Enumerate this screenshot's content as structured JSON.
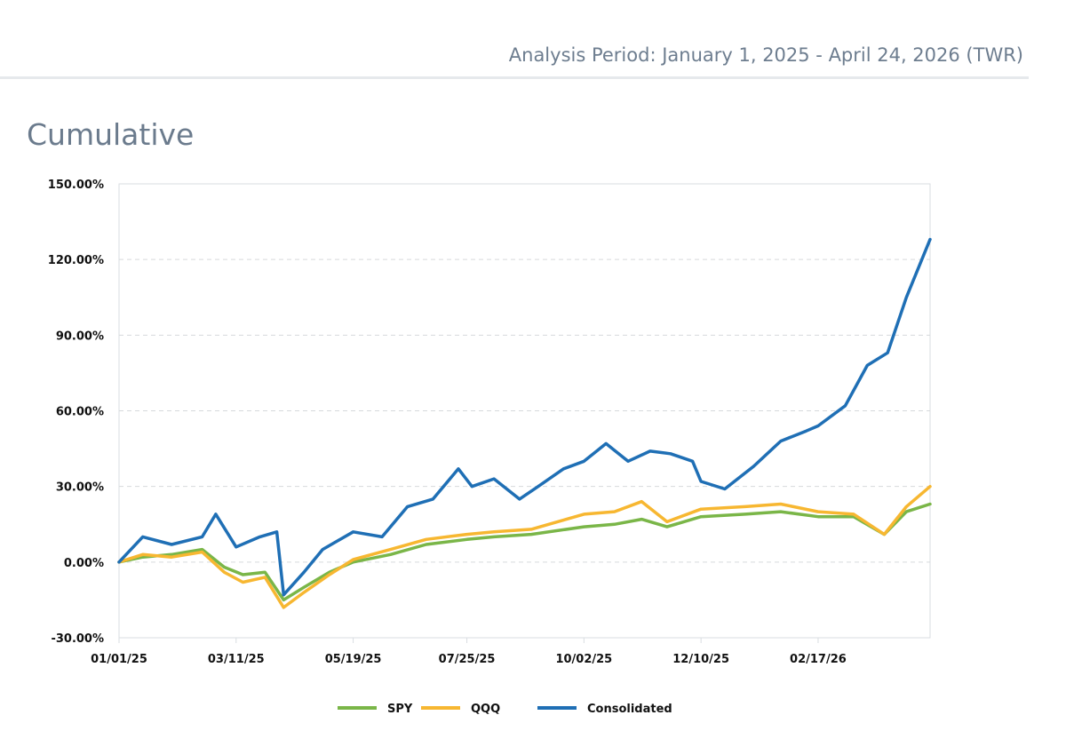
{
  "header": {
    "analysis_period": "Analysis Period: January 1, 2025 - April 24, 2026 (TWR)"
  },
  "section": {
    "title": "Cumulative"
  },
  "chart_data": {
    "type": "line",
    "ylim": [
      -30,
      150
    ],
    "ylabel": "",
    "xlabel": "",
    "y_ticks": [
      "150.00%",
      "120.00%",
      "90.00%",
      "60.00%",
      "30.00%",
      "0.00%",
      "-30.00%"
    ],
    "y_tick_values": [
      150,
      120,
      90,
      60,
      30,
      0,
      -30
    ],
    "x_tick_labels": [
      "01/01/25",
      "03/11/25",
      "05/19/25",
      "07/25/25",
      "10/02/25",
      "12/10/25",
      "02/17/26"
    ],
    "x_tick_dates": [
      "2025-01-01",
      "2025-03-11",
      "2025-05-19",
      "2025-07-25",
      "2025-10-02",
      "2025-12-10",
      "2026-02-17"
    ],
    "x_range": [
      "2025-01-01",
      "2026-04-24"
    ],
    "grid": "horizontal dashed",
    "legend_position": "bottom",
    "series": [
      {
        "name": "SPY",
        "color": "#7ab648",
        "points": [
          [
            "2025-01-01",
            0
          ],
          [
            "2025-01-15",
            2
          ],
          [
            "2025-02-01",
            3
          ],
          [
            "2025-02-19",
            5
          ],
          [
            "2025-03-04",
            -2
          ],
          [
            "2025-03-15",
            -5
          ],
          [
            "2025-03-28",
            -4
          ],
          [
            "2025-04-08",
            -15
          ],
          [
            "2025-04-20",
            -10
          ],
          [
            "2025-05-05",
            -4
          ],
          [
            "2025-05-19",
            0
          ],
          [
            "2025-06-10",
            3
          ],
          [
            "2025-07-01",
            7
          ],
          [
            "2025-07-25",
            9
          ],
          [
            "2025-08-10",
            10
          ],
          [
            "2025-09-01",
            11
          ],
          [
            "2025-10-02",
            14
          ],
          [
            "2025-10-20",
            15
          ],
          [
            "2025-11-05",
            17
          ],
          [
            "2025-11-20",
            14
          ],
          [
            "2025-12-10",
            18
          ],
          [
            "2026-01-05",
            19
          ],
          [
            "2026-01-26",
            20
          ],
          [
            "2026-02-17",
            18
          ],
          [
            "2026-03-10",
            18
          ],
          [
            "2026-03-28",
            11
          ],
          [
            "2026-04-10",
            20
          ],
          [
            "2026-04-24",
            23
          ]
        ]
      },
      {
        "name": "QQQ",
        "color": "#f7b731",
        "points": [
          [
            "2025-01-01",
            0
          ],
          [
            "2025-01-15",
            3
          ],
          [
            "2025-02-01",
            2
          ],
          [
            "2025-02-19",
            4
          ],
          [
            "2025-03-04",
            -4
          ],
          [
            "2025-03-15",
            -8
          ],
          [
            "2025-03-28",
            -6
          ],
          [
            "2025-04-08",
            -18
          ],
          [
            "2025-04-20",
            -12
          ],
          [
            "2025-05-05",
            -5
          ],
          [
            "2025-05-19",
            1
          ],
          [
            "2025-06-10",
            5
          ],
          [
            "2025-07-01",
            9
          ],
          [
            "2025-07-25",
            11
          ],
          [
            "2025-08-10",
            12
          ],
          [
            "2025-09-01",
            13
          ],
          [
            "2025-10-02",
            19
          ],
          [
            "2025-10-20",
            20
          ],
          [
            "2025-11-05",
            24
          ],
          [
            "2025-11-20",
            16
          ],
          [
            "2025-12-10",
            21
          ],
          [
            "2026-01-05",
            22
          ],
          [
            "2026-01-26",
            23
          ],
          [
            "2026-02-17",
            20
          ],
          [
            "2026-03-10",
            19
          ],
          [
            "2026-03-28",
            11
          ],
          [
            "2026-04-10",
            22
          ],
          [
            "2026-04-24",
            30
          ]
        ]
      },
      {
        "name": "Consolidated",
        "color": "#1f6fb5",
        "points": [
          [
            "2025-01-01",
            0
          ],
          [
            "2025-01-15",
            10
          ],
          [
            "2025-02-01",
            7
          ],
          [
            "2025-02-19",
            10
          ],
          [
            "2025-02-27",
            19
          ],
          [
            "2025-03-11",
            6
          ],
          [
            "2025-03-25",
            10
          ],
          [
            "2025-04-04",
            12
          ],
          [
            "2025-04-08",
            -13
          ],
          [
            "2025-04-20",
            -4
          ],
          [
            "2025-05-01",
            5
          ],
          [
            "2025-05-19",
            12
          ],
          [
            "2025-06-05",
            10
          ],
          [
            "2025-06-20",
            22
          ],
          [
            "2025-07-05",
            25
          ],
          [
            "2025-07-20",
            37
          ],
          [
            "2025-07-28",
            30
          ],
          [
            "2025-08-10",
            33
          ],
          [
            "2025-08-25",
            25
          ],
          [
            "2025-09-05",
            30
          ],
          [
            "2025-09-20",
            37
          ],
          [
            "2025-10-02",
            40
          ],
          [
            "2025-10-15",
            47
          ],
          [
            "2025-10-28",
            40
          ],
          [
            "2025-11-10",
            44
          ],
          [
            "2025-11-22",
            43
          ],
          [
            "2025-12-05",
            40
          ],
          [
            "2025-12-10",
            32
          ],
          [
            "2025-12-24",
            29
          ],
          [
            "2026-01-10",
            38
          ],
          [
            "2026-01-26",
            48
          ],
          [
            "2026-02-10",
            52
          ],
          [
            "2026-02-17",
            54
          ],
          [
            "2026-03-05",
            62
          ],
          [
            "2026-03-18",
            78
          ],
          [
            "2026-03-30",
            83
          ],
          [
            "2026-04-10",
            105
          ],
          [
            "2026-04-24",
            128
          ]
        ]
      }
    ]
  }
}
